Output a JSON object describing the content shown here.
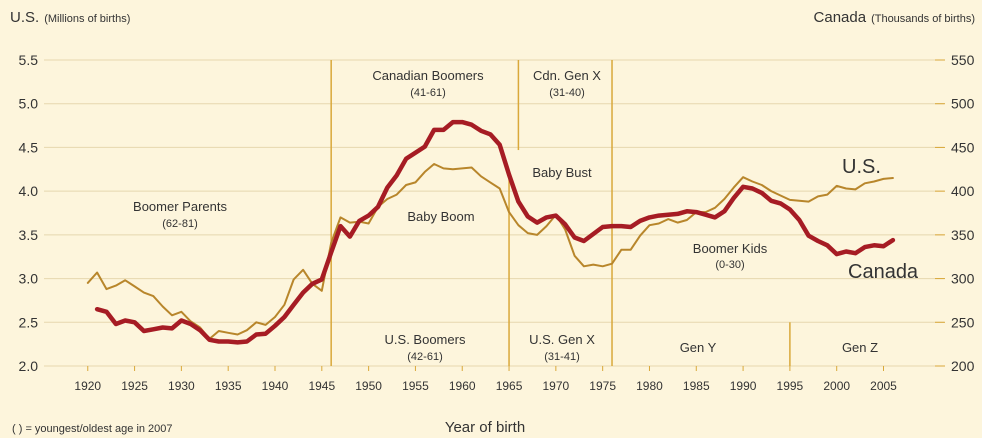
{
  "chart_data": {
    "type": "line",
    "ylabel": "U.S.",
    "ylabel_unit": "(Millions of births)",
    "y2label": "Canada",
    "y2label_unit": "(Thousands of births)",
    "xlabel": "Year of birth",
    "footnote": "( ) = youngest/oldest age in 2007",
    "x": [
      1920,
      1921,
      1922,
      1923,
      1924,
      1925,
      1926,
      1927,
      1928,
      1929,
      1930,
      1931,
      1932,
      1933,
      1934,
      1935,
      1936,
      1937,
      1938,
      1939,
      1940,
      1941,
      1942,
      1943,
      1944,
      1945,
      1946,
      1947,
      1948,
      1949,
      1950,
      1951,
      1952,
      1953,
      1954,
      1955,
      1956,
      1957,
      1958,
      1959,
      1960,
      1961,
      1962,
      1963,
      1964,
      1965,
      1966,
      1967,
      1968,
      1969,
      1970,
      1971,
      1972,
      1973,
      1974,
      1975,
      1976,
      1977,
      1978,
      1979,
      1980,
      1981,
      1982,
      1983,
      1984,
      1985,
      1986,
      1987,
      1988,
      1989,
      1990,
      1991,
      1992,
      1993,
      1994,
      1995,
      1996,
      1997,
      1998,
      1999,
      2000,
      2001,
      2002,
      2003,
      2004,
      2005,
      2006
    ],
    "series": [
      {
        "name": "U.S.",
        "color": "#b8862b",
        "values": [
          2.95,
          3.07,
          2.88,
          2.92,
          2.98,
          2.91,
          2.84,
          2.8,
          2.68,
          2.58,
          2.62,
          2.51,
          2.44,
          2.31,
          2.4,
          2.38,
          2.36,
          2.41,
          2.5,
          2.47,
          2.56,
          2.7,
          2.99,
          3.1,
          2.94,
          2.86,
          3.41,
          3.7,
          3.64,
          3.65,
          3.63,
          3.82,
          3.91,
          3.96,
          4.07,
          4.1,
          4.22,
          4.31,
          4.26,
          4.25,
          4.26,
          4.27,
          4.17,
          4.1,
          4.03,
          3.76,
          3.61,
          3.52,
          3.5,
          3.6,
          3.73,
          3.56,
          3.26,
          3.14,
          3.16,
          3.14,
          3.17,
          3.33,
          3.33,
          3.49,
          3.61,
          3.63,
          3.68,
          3.64,
          3.67,
          3.76,
          3.76,
          3.81,
          3.91,
          4.04,
          4.16,
          4.11,
          4.07,
          4.0,
          3.95,
          3.9,
          3.89,
          3.88,
          3.94,
          3.96,
          4.06,
          4.03,
          4.02,
          4.09,
          4.11,
          4.14,
          4.15
        ]
      },
      {
        "name": "Canada",
        "color": "#a61c24",
        "axis": "y2",
        "values": [
          null,
          265,
          262,
          248,
          252,
          250,
          240,
          242,
          244,
          243,
          252,
          248,
          241,
          230,
          228,
          228,
          227,
          228,
          236,
          237,
          246,
          256,
          270,
          284,
          294,
          299,
          330,
          360,
          348,
          366,
          372,
          382,
          404,
          418,
          437,
          444,
          451,
          470,
          470,
          479,
          479,
          476,
          469,
          465,
          453,
          419,
          388,
          371,
          364,
          370,
          372,
          362,
          347,
          343,
          351,
          359,
          360,
          360,
          359,
          366,
          370,
          372,
          373,
          374,
          377,
          376,
          373,
          370,
          377,
          392,
          405,
          403,
          398,
          389,
          386,
          379,
          367,
          349,
          343,
          338,
          328,
          331,
          329,
          336,
          338,
          337,
          344
        ]
      }
    ],
    "xlim": [
      1916.5,
      2010.5
    ],
    "xticks": [
      1920,
      1925,
      1930,
      1935,
      1940,
      1945,
      1950,
      1955,
      1960,
      1965,
      1970,
      1975,
      1980,
      1985,
      1990,
      1995,
      2000,
      2005
    ],
    "ylim": [
      2.0,
      5.5
    ],
    "yticks": [
      {
        "value": 2.0,
        "label": "2.0"
      },
      2.5,
      {
        "value": 3.0,
        "label": "3.0"
      },
      3.5,
      {
        "value": 4.0,
        "label": "4.0"
      },
      4.5,
      {
        "value": 5.0,
        "label": "5.0"
      },
      5.5
    ],
    "y2lim": [
      200,
      550
    ],
    "y2ticks": [
      200,
      250,
      300,
      350,
      400,
      450,
      500,
      550
    ],
    "grid": true,
    "dividers": [
      {
        "x": 1946,
        "y": [
          2.0,
          5.5
        ]
      },
      {
        "x": 1965,
        "y": [
          2.0,
          4.2
        ]
      },
      {
        "x": 1966,
        "y": [
          4.47,
          5.5
        ]
      },
      {
        "x": 1976,
        "y": [
          2.0,
          5.5
        ]
      },
      {
        "x": 1995,
        "y": [
          2.0,
          2.5
        ]
      }
    ],
    "annotations": [
      "Canadian Boomers",
      "(41-61)",
      "Cdn. Gen X",
      "(31-40)",
      "Baby Bust",
      "Baby Boom",
      "Boomer Parents",
      "(62-81)",
      "Boomer Kids",
      "(0-30)",
      "U.S. Boomers",
      "(42-61)",
      "U.S. Gen X",
      "(31-41)",
      "Gen Y",
      "Gen Z"
    ]
  }
}
